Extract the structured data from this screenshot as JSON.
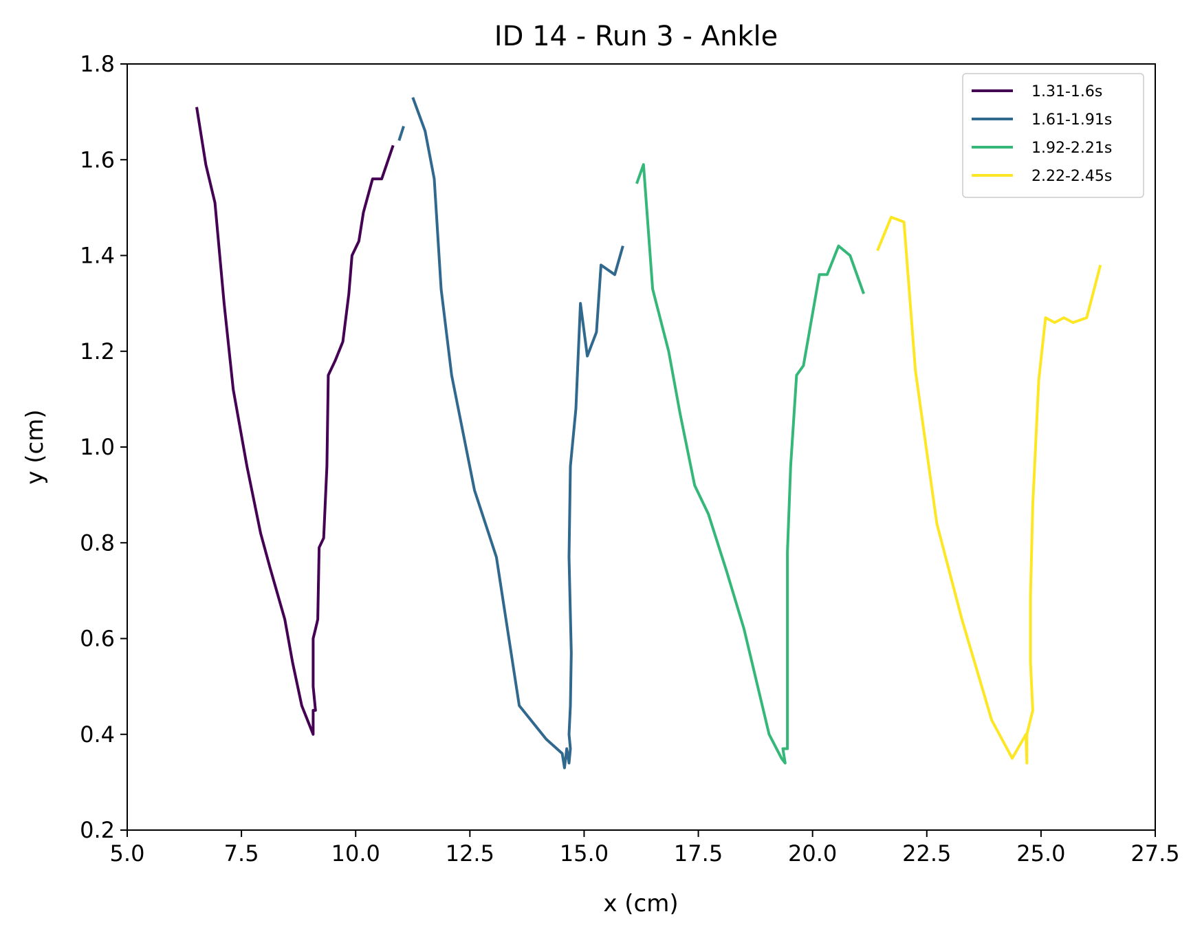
{
  "chart_data": {
    "type": "line",
    "title": "ID 14 - Run 3 - Ankle",
    "xlabel": "x (cm)",
    "ylabel": "y (cm)",
    "xlim": [
      5.0,
      27.5
    ],
    "ylim": [
      0.2,
      1.8
    ],
    "xticks": [
      "5.0",
      "7.5",
      "10.0",
      "12.5",
      "15.0",
      "17.5",
      "20.0",
      "22.5",
      "25.0",
      "27.5"
    ],
    "yticks": [
      "0.2",
      "0.4",
      "0.6",
      "0.8",
      "1.0",
      "1.2",
      "1.4",
      "1.6",
      "1.8"
    ],
    "grid": false,
    "legend_position": "top-right",
    "series": [
      {
        "name": "1.31-1.6s",
        "color": "#440154",
        "segments": [
          [
            [
              6.52,
              1.71
            ],
            [
              6.72,
              1.59
            ],
            [
              6.92,
              1.51
            ],
            [
              7.12,
              1.3
            ],
            [
              7.32,
              1.12
            ],
            [
              7.62,
              0.96
            ],
            [
              7.92,
              0.82
            ],
            [
              8.12,
              0.75
            ],
            [
              8.45,
              0.64
            ],
            [
              8.62,
              0.55
            ],
            [
              8.82,
              0.46
            ],
            [
              9.07,
              0.4
            ],
            [
              9.07,
              0.45
            ],
            [
              9.12,
              0.45
            ],
            [
              9.07,
              0.5
            ],
            [
              9.07,
              0.6
            ],
            [
              9.12,
              0.62
            ],
            [
              9.17,
              0.64
            ],
            [
              9.2,
              0.79
            ],
            [
              9.3,
              0.81
            ],
            [
              9.37,
              0.96
            ],
            [
              9.4,
              1.15
            ],
            [
              9.55,
              1.18
            ],
            [
              9.72,
              1.22
            ],
            [
              9.85,
              1.32
            ],
            [
              9.92,
              1.4
            ],
            [
              10.07,
              1.43
            ],
            [
              10.17,
              1.49
            ],
            [
              10.37,
              1.56
            ],
            [
              10.57,
              1.56
            ],
            [
              10.82,
              1.63
            ]
          ]
        ]
      },
      {
        "name": "1.61-1.91s",
        "color": "#31688e",
        "segments": [
          [
            [
              10.95,
              1.64
            ],
            [
              11.05,
              1.67
            ]
          ],
          [
            [
              11.25,
              1.73
            ],
            [
              11.52,
              1.66
            ],
            [
              11.72,
              1.56
            ],
            [
              11.87,
              1.33
            ],
            [
              12.1,
              1.15
            ],
            [
              12.6,
              0.91
            ],
            [
              13.08,
              0.77
            ],
            [
              13.58,
              0.46
            ],
            [
              14.17,
              0.39
            ],
            [
              14.52,
              0.36
            ],
            [
              14.57,
              0.33
            ],
            [
              14.62,
              0.37
            ],
            [
              14.67,
              0.34
            ],
            [
              14.7,
              0.37
            ],
            [
              14.67,
              0.4
            ],
            [
              14.7,
              0.46
            ],
            [
              14.72,
              0.57
            ],
            [
              14.67,
              0.77
            ],
            [
              14.7,
              0.96
            ],
            [
              14.82,
              1.08
            ],
            [
              14.92,
              1.3
            ],
            [
              15.07,
              1.19
            ],
            [
              15.27,
              1.24
            ],
            [
              15.37,
              1.38
            ],
            [
              15.67,
              1.36
            ],
            [
              15.85,
              1.42
            ]
          ]
        ]
      },
      {
        "name": "1.92-2.21s",
        "color": "#35b779",
        "segments": [
          [
            [
              16.15,
              1.55
            ],
            [
              16.3,
              1.59
            ],
            [
              16.5,
              1.33
            ],
            [
              16.85,
              1.2
            ],
            [
              17.1,
              1.07
            ],
            [
              17.42,
              0.92
            ],
            [
              17.72,
              0.86
            ],
            [
              18.12,
              0.74
            ],
            [
              18.5,
              0.62
            ],
            [
              19.05,
              0.4
            ],
            [
              19.32,
              0.35
            ],
            [
              19.4,
              0.34
            ],
            [
              19.35,
              0.37
            ],
            [
              19.45,
              0.37
            ],
            [
              19.45,
              0.42
            ],
            [
              19.45,
              0.59
            ],
            [
              19.45,
              0.78
            ],
            [
              19.52,
              0.96
            ],
            [
              19.65,
              1.15
            ],
            [
              19.8,
              1.17
            ],
            [
              20.15,
              1.36
            ],
            [
              20.32,
              1.36
            ],
            [
              20.57,
              1.42
            ],
            [
              20.82,
              1.4
            ],
            [
              21.12,
              1.32
            ]
          ]
        ]
      },
      {
        "name": "2.22-2.45s",
        "color": "#fde725",
        "segments": [
          [
            [
              21.42,
              1.41
            ],
            [
              21.72,
              1.48
            ],
            [
              22.0,
              1.47
            ],
            [
              22.25,
              1.16
            ],
            [
              22.72,
              0.84
            ],
            [
              23.27,
              0.64
            ],
            [
              23.92,
              0.43
            ],
            [
              24.37,
              0.35
            ],
            [
              24.67,
              0.4
            ],
            [
              24.69,
              0.34
            ],
            [
              24.69,
              0.4
            ],
            [
              24.82,
              0.45
            ],
            [
              24.77,
              0.55
            ],
            [
              24.77,
              0.69
            ],
            [
              24.82,
              0.88
            ],
            [
              24.95,
              1.14
            ],
            [
              25.1,
              1.27
            ],
            [
              25.3,
              1.26
            ],
            [
              25.5,
              1.27
            ],
            [
              25.7,
              1.26
            ],
            [
              26.0,
              1.27
            ],
            [
              26.3,
              1.38
            ]
          ]
        ]
      }
    ]
  }
}
